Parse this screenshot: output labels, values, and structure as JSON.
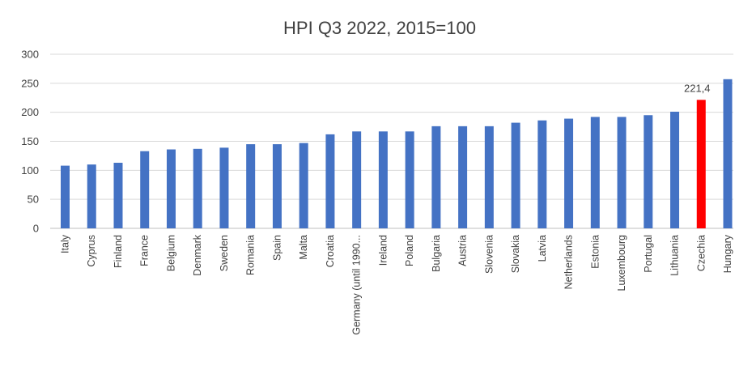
{
  "chart_data": {
    "type": "bar",
    "title": "HPI Q3 2022, 2015=100",
    "xlabel": "",
    "ylabel": "",
    "ylim": [
      0,
      300
    ],
    "yticks": [
      0,
      50,
      100,
      150,
      200,
      250,
      300
    ],
    "grid": true,
    "legend": "none",
    "categories": [
      "Italy",
      "Cyprus",
      "Finland",
      "France",
      "Belgium",
      "Denmark",
      "Sweden",
      "Romania",
      "Spain",
      "Malta",
      "Croatia",
      "Germany (until 1990...",
      "Ireland",
      "Poland",
      "Bulgaria",
      "Austria",
      "Slovenia",
      "Slovakia",
      "Latvia",
      "Netherlands",
      "Estonia",
      "Luxembourg",
      "Portugal",
      "Lithuania",
      "Czechia",
      "Hungary"
    ],
    "values": [
      108,
      110,
      113,
      133,
      136,
      137,
      139,
      145,
      145,
      147,
      162,
      167,
      167,
      167,
      176,
      176,
      176,
      182,
      186,
      189,
      192,
      192,
      195,
      201,
      221.4,
      257
    ],
    "bar_colors": {
      "default": "#4472c4",
      "highlight": "#ff0000"
    },
    "highlight_category": "Czechia",
    "data_labels": [
      {
        "category": "Czechia",
        "text": "221,4"
      }
    ]
  }
}
